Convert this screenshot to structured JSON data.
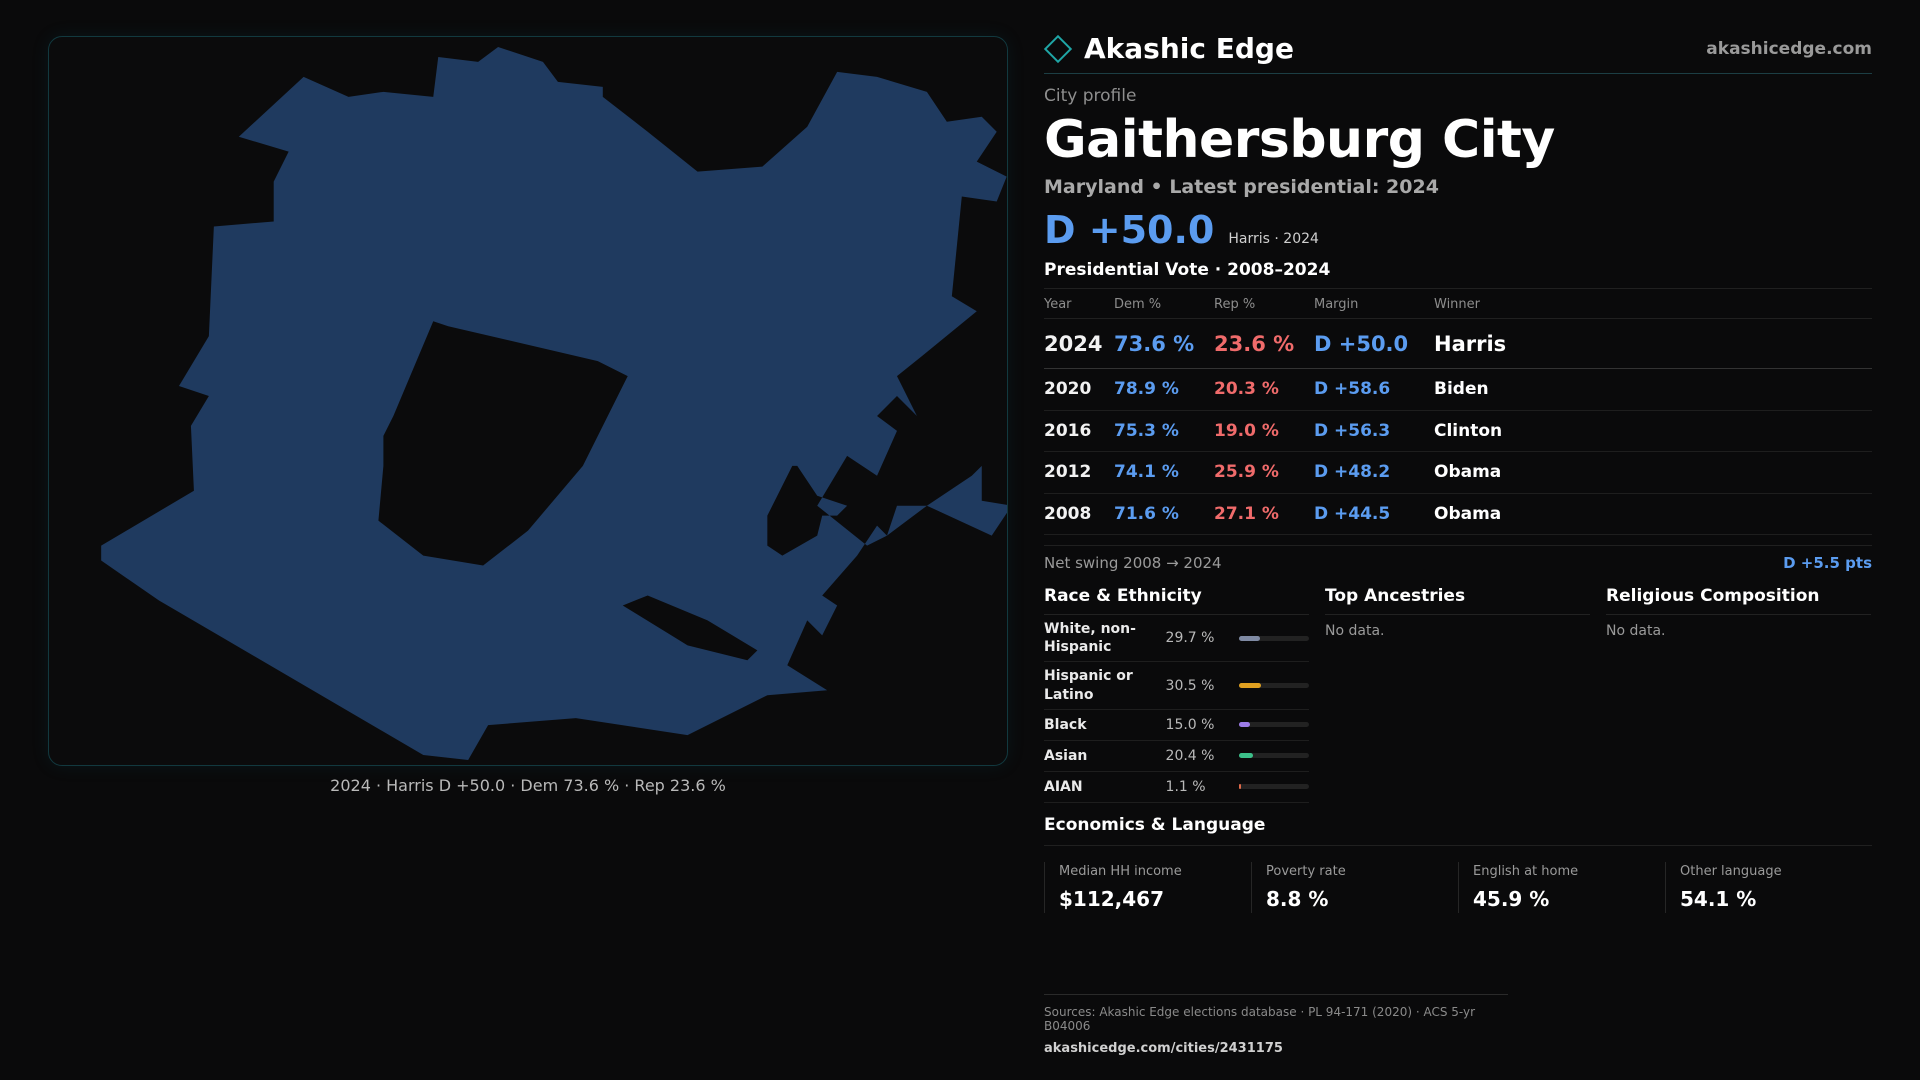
{
  "brand": {
    "name": "Akashic Edge",
    "site": "akashicedge.com"
  },
  "profile": {
    "kicker": "City profile",
    "city": "Gaithersburg City",
    "subtitle": "Maryland • Latest presidential: 2024",
    "headline_margin": "D +50.0",
    "headline_note": "Harris · 2024"
  },
  "map": {
    "caption": "2024 · Harris D +50.0 · Dem 73.6 % · Rep 23.6 %",
    "fill_color": "#1f3a5f",
    "background_color": "#0b0b0c"
  },
  "votes": {
    "title": "Presidential Vote · 2008–2024",
    "headers": [
      "Year",
      "Dem %",
      "Rep %",
      "Margin",
      "Winner"
    ],
    "rows": [
      {
        "year": "2024",
        "dem": "73.6 %",
        "rep": "23.6 %",
        "margin": "D +50.0",
        "winner": "Harris"
      },
      {
        "year": "2020",
        "dem": "78.9 %",
        "rep": "20.3 %",
        "margin": "D +58.6",
        "winner": "Biden"
      },
      {
        "year": "2016",
        "dem": "75.3 %",
        "rep": "19.0 %",
        "margin": "D +56.3",
        "winner": "Clinton"
      },
      {
        "year": "2012",
        "dem": "74.1 %",
        "rep": "25.9 %",
        "margin": "D +48.2",
        "winner": "Obama"
      },
      {
        "year": "2008",
        "dem": "71.6 %",
        "rep": "27.1 %",
        "margin": "D +44.5",
        "winner": "Obama"
      }
    ],
    "swing_label": "Net swing 2008 → 2024",
    "swing_value": "D +5.5 pts"
  },
  "race": {
    "title": "Race & Ethnicity",
    "rows": [
      {
        "name": "White, non-Hispanic",
        "pct": "29.7 %",
        "value": 29.7,
        "color": "#7f8aa3"
      },
      {
        "name": "Hispanic or Latino",
        "pct": "30.5 %",
        "value": 30.5,
        "color": "#e0a020"
      },
      {
        "name": "Black",
        "pct": "15.0 %",
        "value": 15.0,
        "color": "#9d7ce8"
      },
      {
        "name": "Asian",
        "pct": "20.4 %",
        "value": 20.4,
        "color": "#3cc08a"
      },
      {
        "name": "AIAN",
        "pct": "1.1 %",
        "value": 1.1,
        "color": "#e06a4a"
      }
    ]
  },
  "ancestries": {
    "title": "Top Ancestries",
    "empty": "No data."
  },
  "religion": {
    "title": "Religious Composition",
    "empty": "No data."
  },
  "economics": {
    "title": "Economics & Language",
    "cells": [
      {
        "label": "Median HH income",
        "value": "$112,467"
      },
      {
        "label": "Poverty rate",
        "value": "8.8 %"
      },
      {
        "label": "English at home",
        "value": "45.9 %"
      },
      {
        "label": "Other language",
        "value": "54.1 %"
      }
    ]
  },
  "sources": {
    "line": "Sources: Akashic Edge elections database · PL 94-171 (2020) · ACS 5-yr B04006",
    "url": "akashicedge.com/cities/2431175"
  }
}
